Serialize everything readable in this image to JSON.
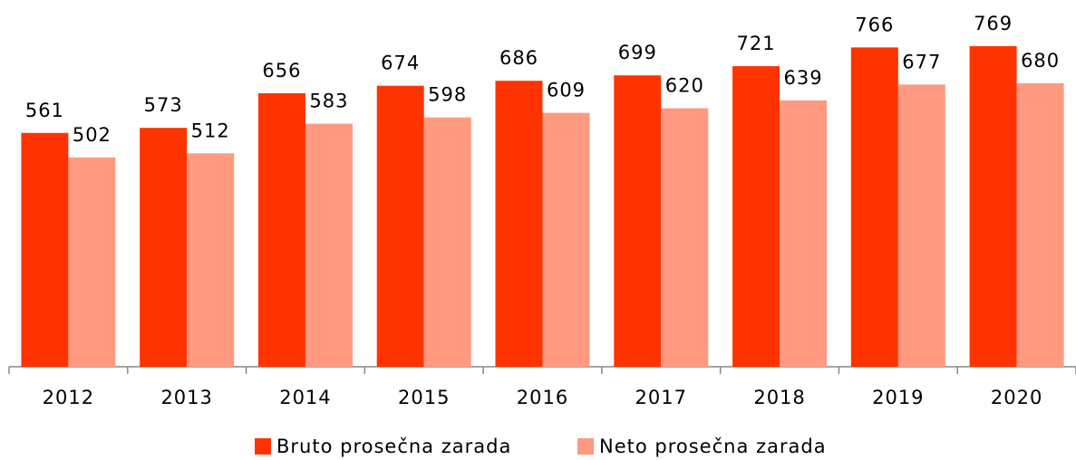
{
  "chart_data": {
    "type": "bar",
    "categories": [
      "2012",
      "2013",
      "2014",
      "2015",
      "2016",
      "2017",
      "2018",
      "2019",
      "2020"
    ],
    "series": [
      {
        "name": "Bruto prosečna zarada",
        "color": "#ff3300",
        "values": [
          561,
          573,
          656,
          674,
          686,
          699,
          721,
          766,
          769
        ]
      },
      {
        "name": "Neto prosečna zarada",
        "color": "#ff9980",
        "values": [
          502,
          512,
          583,
          598,
          609,
          620,
          639,
          677,
          680
        ]
      }
    ],
    "legend": "bottom"
  }
}
